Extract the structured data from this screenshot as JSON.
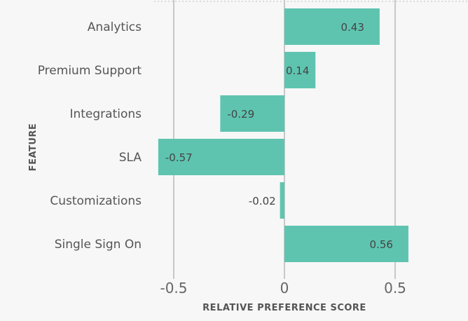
{
  "chart_data": {
    "type": "bar",
    "orientation": "horizontal",
    "categories": [
      "Analytics",
      "Premium Support",
      "Integrations",
      "SLA",
      "Customizations",
      "Single Sign On"
    ],
    "values": [
      0.43,
      0.14,
      -0.29,
      -0.57,
      -0.02,
      0.56
    ],
    "value_labels": [
      "0.43",
      "0.14",
      "-0.29",
      "-0.57",
      "-0.02",
      "0.56"
    ],
    "xlabel": "RELATIVE PREFERENCE SCORE",
    "ylabel": "FEATURE",
    "xlim": [
      -0.58,
      0.58
    ],
    "xticks": [
      -0.5,
      0,
      0.5
    ],
    "xtick_labels": [
      "-0.5",
      "0",
      "0.5"
    ],
    "grid": "vertical",
    "colors": {
      "bar": "#5ec4b0",
      "grid": "#c8c8c8",
      "background": "#f7f7f7"
    }
  }
}
